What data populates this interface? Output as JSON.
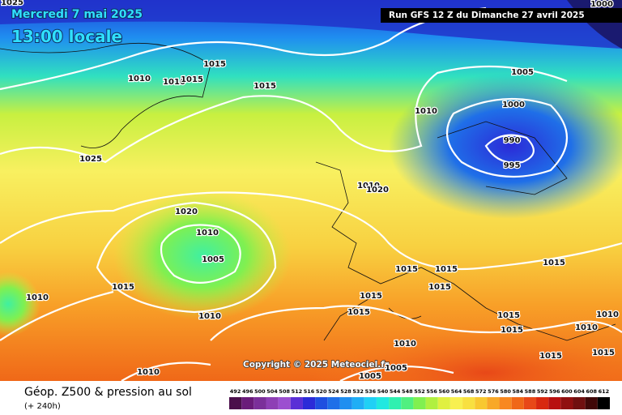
{
  "header": {
    "date": "Mercredi 7 mai 2025",
    "time": "13:00 locale",
    "run": "Run GFS 12 Z du Dimanche 27 avril 2025"
  },
  "copyright": "Copyright © 2025 Meteociel.fr",
  "footer": {
    "title": "Géop. Z500 & pression au sol",
    "lead": "(+ 240h)"
  },
  "isobar_labels": [
    "1025",
    "1000",
    "1015",
    "1010",
    "1010",
    "1015",
    "1015",
    "1005",
    "1010",
    "1000",
    "1025",
    "990",
    "995",
    "1010",
    "1020",
    "1020",
    "1010",
    "1005",
    "1015",
    "1010",
    "1015",
    "1015",
    "1015",
    "1015",
    "1015",
    "1015",
    "1010",
    "1015",
    "1015",
    "1010",
    "1010",
    "1015",
    "1015",
    "1010",
    "1010",
    "1005",
    "1005"
  ],
  "colorbar": {
    "levels": [
      492,
      496,
      500,
      504,
      508,
      512,
      516,
      520,
      524,
      528,
      532,
      536,
      540,
      544,
      548,
      552,
      556,
      560,
      564,
      568,
      572,
      576,
      580,
      584,
      588,
      592,
      596,
      600,
      604,
      608,
      612
    ],
    "colors": [
      "#4b0f4b",
      "#6a1b7a",
      "#7b2f9a",
      "#8e3fb5",
      "#9c4fd0",
      "#5a2fd6",
      "#2b2bd8",
      "#1f4fe0",
      "#1f6fe8",
      "#1f8ff0",
      "#20aef5",
      "#20d0f5",
      "#20e8e0",
      "#30f0b0",
      "#50f080",
      "#80f050",
      "#b0f040",
      "#e0f040",
      "#f8f050",
      "#f8e040",
      "#f8c830",
      "#f8a828",
      "#f88820",
      "#f06818",
      "#e84818",
      "#d82810",
      "#b81010",
      "#901010",
      "#701010",
      "#400808",
      "#000000"
    ]
  }
}
